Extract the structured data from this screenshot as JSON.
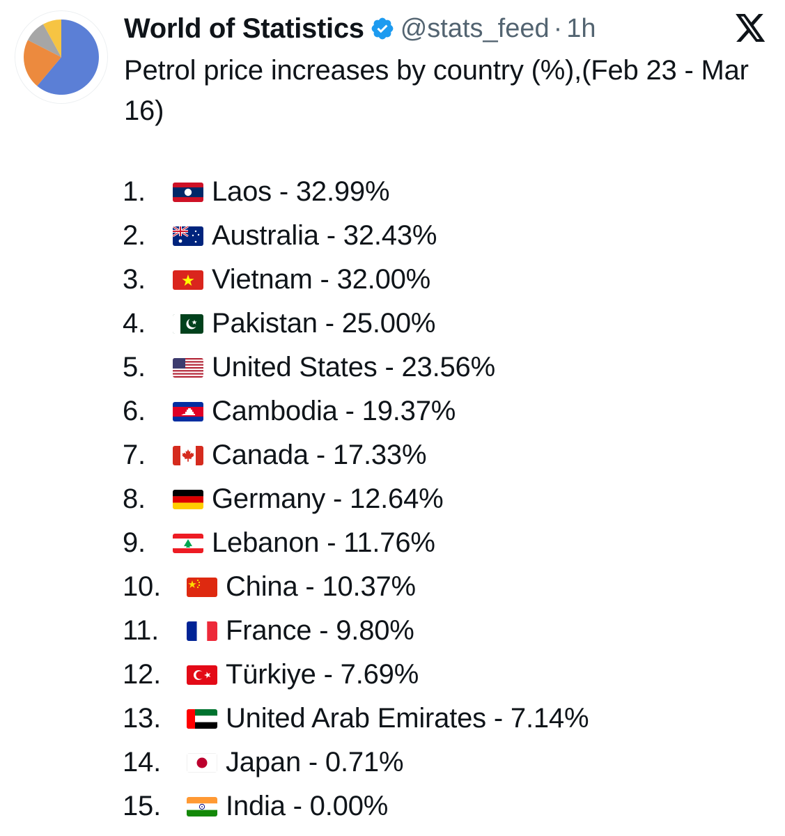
{
  "profile": {
    "display_name": "World of Statistics",
    "handle": "@stats_feed",
    "separator": "·",
    "time": "1h",
    "avatar_icon": "pie-chart-avatar-icon",
    "verified_icon": "verified-badge-icon",
    "platform_icon": "x-logo-icon",
    "colors": {
      "verified": "#1d9bf0",
      "pie_blue": "#5b7fd6",
      "pie_orange": "#ec8a3e",
      "pie_gray": "#a6a6a6",
      "pie_yellow": "#f6c443"
    }
  },
  "tweet": {
    "text": "Petrol price increases by country (%),(Feb 23 - Mar 16)",
    "items": [
      {
        "rank": "1.",
        "flag": "laos-flag-icon",
        "text": "Laos - 32.99%"
      },
      {
        "rank": "2.",
        "flag": "australia-flag-icon",
        "text": "Australia - 32.43%"
      },
      {
        "rank": "3.",
        "flag": "vietnam-flag-icon",
        "text": "Vietnam - 32.00%"
      },
      {
        "rank": "4.",
        "flag": "pakistan-flag-icon",
        "text": "Pakistan - 25.00%"
      },
      {
        "rank": "5.",
        "flag": "united-states-flag-icon",
        "text": "United States - 23.56%"
      },
      {
        "rank": "6.",
        "flag": "cambodia-flag-icon",
        "text": "Cambodia - 19.37%"
      },
      {
        "rank": "7.",
        "flag": "canada-flag-icon",
        "text": "Canada - 17.33%"
      },
      {
        "rank": "8.",
        "flag": "germany-flag-icon",
        "text": "Germany - 12.64%"
      },
      {
        "rank": "9.",
        "flag": "lebanon-flag-icon",
        "text": "Lebanon - 11.76%"
      },
      {
        "rank": "10.",
        "flag": "china-flag-icon",
        "text": "China - 10.37%"
      },
      {
        "rank": "11.",
        "flag": "france-flag-icon",
        "text": "France - 9.80%"
      },
      {
        "rank": "12.",
        "flag": "turkiye-flag-icon",
        "text": "Türkiye - 7.69%"
      },
      {
        "rank": "13.",
        "flag": "uae-flag-icon",
        "text": "United Arab Emirates - 7.14%"
      },
      {
        "rank": "14.",
        "flag": "japan-flag-icon",
        "text": "Japan - 0.71%"
      },
      {
        "rank": "15.",
        "flag": "india-flag-icon",
        "text": "India - 0.00%"
      }
    ]
  }
}
